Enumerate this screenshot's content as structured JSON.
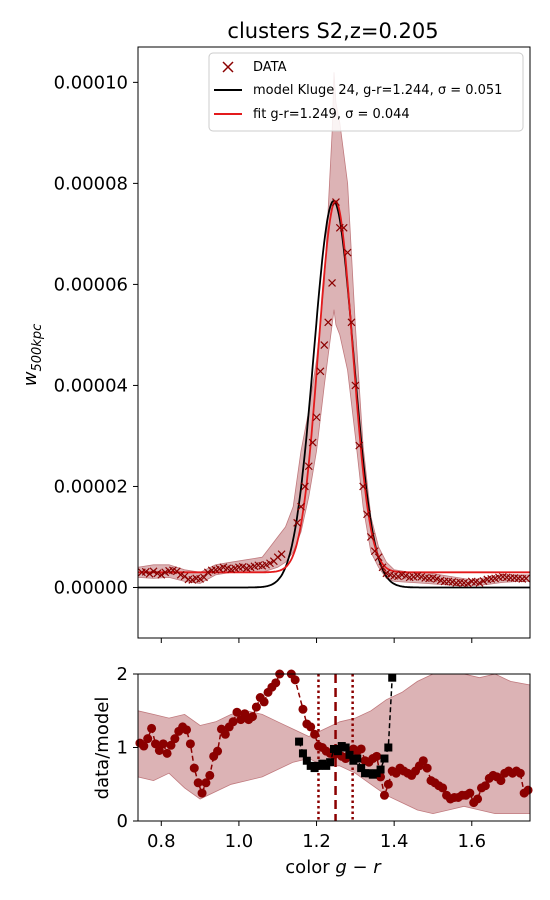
{
  "chart_data": [
    {
      "type": "line",
      "title": "clusters S2,z=0.205",
      "ylabel": "w_500kpc",
      "ylabel_main": "w",
      "ylabel_sub": "500kpc",
      "xlim": [
        0.74,
        1.75
      ],
      "ylim": [
        -1e-05,
        0.000107
      ],
      "yticks": [
        0.0,
        2e-05,
        4e-05,
        6e-05,
        8e-05,
        0.0001
      ],
      "ytick_labels": [
        "0.00000",
        "0.00002",
        "0.00004",
        "0.00006",
        "0.00008",
        "0.00010"
      ],
      "legend_position": "top-right",
      "colors": {
        "data": "#8b0000",
        "model": "#000000",
        "fit": "#e31a1c",
        "band": "#d6a6a8",
        "band_edge": "#c07a7e"
      },
      "legend": [
        {
          "key": "data",
          "label": "DATA"
        },
        {
          "key": "model",
          "label": "model Kluge 24, g-r=1.244, σ = 0.051"
        },
        {
          "key": "fit",
          "label": "fit g-r=1.249, σ = 0.044"
        }
      ],
      "series": [
        {
          "name": "DATA",
          "marker": "x",
          "x": [
            0.75,
            0.76,
            0.77,
            0.78,
            0.79,
            0.8,
            0.81,
            0.82,
            0.83,
            0.84,
            0.85,
            0.86,
            0.87,
            0.88,
            0.89,
            0.9,
            0.91,
            0.92,
            0.93,
            0.94,
            0.95,
            0.96,
            0.97,
            0.98,
            0.99,
            1.0,
            1.01,
            1.02,
            1.03,
            1.04,
            1.05,
            1.06,
            1.07,
            1.08,
            1.09,
            1.1,
            1.11,
            1.15,
            1.16,
            1.17,
            1.18,
            1.19,
            1.2,
            1.21,
            1.22,
            1.23,
            1.24,
            1.25,
            1.26,
            1.27,
            1.28,
            1.29,
            1.3,
            1.31,
            1.32,
            1.33,
            1.34,
            1.35,
            1.36,
            1.37,
            1.38,
            1.39,
            1.4,
            1.41,
            1.42,
            1.43,
            1.44,
            1.45,
            1.46,
            1.47,
            1.48,
            1.49,
            1.5,
            1.51,
            1.52,
            1.53,
            1.54,
            1.55,
            1.56,
            1.57,
            1.58,
            1.59,
            1.6,
            1.61,
            1.62,
            1.63,
            1.64,
            1.65,
            1.66,
            1.67,
            1.68,
            1.69,
            1.7,
            1.71,
            1.72,
            1.73,
            1.74
          ],
          "y": [
            3e-06,
            3.1e-06,
            2.7e-06,
            3.2e-06,
            2.8e-06,
            2.5e-06,
            3e-06,
            3.3e-06,
            3.4e-06,
            3.2e-06,
            2.5e-06,
            2.2e-06,
            1.6e-06,
            1.5e-06,
            1.8e-06,
            1.7e-06,
            2e-06,
            3e-06,
            3.4e-06,
            3.5e-06,
            3.7e-06,
            4e-06,
            3.8e-06,
            3.6e-06,
            3.8e-06,
            4e-06,
            4.1e-06,
            3.8e-06,
            4e-06,
            4.2e-06,
            4.4e-06,
            4.3e-06,
            4.5e-06,
            4.8e-06,
            5.2e-06,
            6e-06,
            6.6e-06,
            1.28e-05,
            1.6e-05,
            2e-05,
            2.4e-05,
            2.87e-05,
            3.37e-05,
            4.28e-05,
            4.8e-05,
            5.25e-05,
            6.03e-05,
            7.63e-05,
            7.12e-05,
            7.12e-05,
            6.63e-05,
            5.25e-05,
            4e-05,
            2.81e-05,
            2e-05,
            1.45e-05,
            1e-05,
            7.2e-06,
            6e-06,
            4e-06,
            2.8e-06,
            2.5e-06,
            2.3e-06,
            2.2e-06,
            2.5e-06,
            2.3e-06,
            2e-06,
            2.1e-06,
            2.3e-06,
            2.1e-06,
            1.9e-06,
            1.8e-06,
            1.9e-06,
            1.7e-06,
            1.4e-06,
            1.2e-06,
            1.2e-06,
            1.1e-06,
            9e-07,
            1e-06,
            9e-07,
            8e-07,
            1.2e-06,
            1.1e-06,
            9e-07,
            1.3e-06,
            1.6e-06,
            1.7e-06,
            1.8e-06,
            2e-06,
            2.1e-06,
            2e-06,
            1.9e-06,
            1.9e-06,
            1.8e-06,
            1.7e-06,
            1.8e-06
          ]
        },
        {
          "name": "model Kluge 24, g-r=1.244, σ = 0.051",
          "type": "gaussian",
          "center": 1.244,
          "sigma": 0.051,
          "amplitude": 7.65e-05,
          "baseline": 0.0
        },
        {
          "name": "fit g-r=1.249, σ = 0.044",
          "type": "gaussian",
          "center": 1.249,
          "sigma": 0.044,
          "amplitude": 7.35e-05,
          "baseline": 3e-06
        }
      ],
      "band": {
        "x": [
          0.74,
          0.78,
          0.82,
          0.86,
          0.9,
          0.94,
          0.98,
          1.02,
          1.06,
          1.08,
          1.1,
          1.12,
          1.14,
          1.16,
          1.18,
          1.2,
          1.22,
          1.24,
          1.245,
          1.25,
          1.26,
          1.28,
          1.3,
          1.32,
          1.34,
          1.36,
          1.38,
          1.4,
          1.44,
          1.48,
          1.52,
          1.56,
          1.6,
          1.64,
          1.68,
          1.72,
          1.75
        ],
        "upper": [
          4e-06,
          4.5e-06,
          4.5e-06,
          3.5e-06,
          3e-06,
          4.5e-06,
          5e-06,
          5.5e-06,
          6e-06,
          8e-06,
          1e-05,
          1.2e-05,
          1.6e-05,
          2.7e-05,
          3.5e-05,
          4.5e-05,
          6e-05,
          9e-05,
          0.000102,
          9.6e-05,
          9.2e-05,
          8e-05,
          5.2e-05,
          2.8e-05,
          1.4e-05,
          8e-06,
          5e-06,
          3.5e-06,
          3e-06,
          3e-06,
          2.5e-06,
          2e-06,
          1.5e-06,
          2e-06,
          2.5e-06,
          2.5e-06,
          2.5e-06
        ],
        "lower": [
          2e-06,
          1.8e-06,
          2e-06,
          1.2e-06,
          8e-07,
          2.5e-06,
          3e-06,
          3e-06,
          3e-06,
          3.5e-06,
          4e-06,
          5e-06,
          7e-06,
          1.1e-05,
          1.8e-05,
          2.7e-05,
          4e-05,
          5.2e-05,
          5.5e-05,
          5.2e-05,
          5e-05,
          4.3e-05,
          3e-05,
          1.6e-05,
          7e-06,
          4e-06,
          1.8e-06,
          1.2e-06,
          1e-06,
          8e-07,
          6e-07,
          4e-07,
          4e-07,
          6e-07,
          1e-06,
          1.2e-06,
          1.2e-06
        ]
      }
    },
    {
      "type": "line",
      "xlabel": "color g − r",
      "xlabel_prefix": "color",
      "xlabel_math": "g − r",
      "ylabel": "data/model",
      "xlim": [
        0.74,
        1.75
      ],
      "ylim": [
        0,
        2
      ],
      "xticks": [
        0.8,
        1.0,
        1.2,
        1.4,
        1.6
      ],
      "xtick_labels": [
        "0.8",
        "1.0",
        "1.2",
        "1.4",
        "1.6"
      ],
      "yticks": [
        0,
        1,
        2
      ],
      "ytick_labels": [
        "0",
        "1",
        "2"
      ],
      "vertical_lines": [
        {
          "x": 1.249,
          "style": "dashed",
          "color": "#8b0000"
        },
        {
          "x": 1.205,
          "style": "dotted",
          "color": "#8b0000"
        },
        {
          "x": 1.293,
          "style": "dotted",
          "color": "#8b0000"
        }
      ],
      "series": [
        {
          "name": "ratio-to-model",
          "marker": "o",
          "color": "#8b0000",
          "x": [
            0.745,
            0.755,
            0.765,
            0.775,
            0.785,
            0.795,
            0.805,
            0.815,
            0.825,
            0.835,
            0.845,
            0.855,
            0.865,
            0.875,
            0.885,
            0.895,
            0.905,
            0.915,
            0.925,
            0.935,
            0.945,
            0.955,
            0.965,
            0.975,
            0.985,
            0.995,
            1.005,
            1.015,
            1.025,
            1.035,
            1.045,
            1.055,
            1.065,
            1.075,
            1.085,
            1.095,
            1.105,
            1.135,
            1.145,
            1.165,
            1.175,
            1.185,
            1.195,
            1.205,
            1.215,
            1.225,
            1.235,
            1.245,
            1.255,
            1.265,
            1.275,
            1.285,
            1.295,
            1.305,
            1.315,
            1.325,
            1.335,
            1.345,
            1.355,
            1.365,
            1.375,
            1.385,
            1.395,
            1.405,
            1.415,
            1.425,
            1.435,
            1.445,
            1.455,
            1.465,
            1.475,
            1.485,
            1.495,
            1.505,
            1.515,
            1.525,
            1.535,
            1.545,
            1.555,
            1.565,
            1.575,
            1.585,
            1.595,
            1.605,
            1.615,
            1.625,
            1.635,
            1.645,
            1.655,
            1.665,
            1.675,
            1.685,
            1.695,
            1.705,
            1.715,
            1.725,
            1.735,
            1.745
          ],
          "y": [
            1.06,
            1.02,
            1.12,
            1.26,
            1.05,
            0.96,
            1.05,
            0.92,
            1.03,
            1.12,
            1.22,
            1.28,
            1.24,
            1.05,
            0.72,
            0.52,
            0.38,
            0.52,
            0.62,
            0.88,
            0.95,
            1.25,
            1.18,
            1.28,
            1.35,
            1.48,
            1.38,
            1.46,
            1.38,
            1.42,
            1.55,
            1.68,
            1.62,
            1.75,
            1.82,
            1.88,
            2.0,
            2.0,
            1.92,
            1.52,
            1.32,
            1.28,
            1.18,
            1.02,
            1.0,
            0.95,
            0.92,
            0.9,
            0.95,
            0.88,
            0.85,
            0.92,
            0.98,
            0.95,
            0.98,
            0.82,
            0.8,
            0.85,
            0.88,
            0.6,
            0.35,
            0.5,
            0.68,
            0.65,
            0.72,
            0.68,
            0.65,
            0.62,
            0.68,
            0.75,
            0.82,
            0.72,
            0.55,
            0.52,
            0.48,
            0.45,
            0.35,
            0.3,
            0.32,
            0.32,
            0.35,
            0.35,
            0.38,
            0.25,
            0.3,
            0.45,
            0.48,
            0.58,
            0.62,
            0.6,
            0.55,
            0.65,
            0.68,
            0.65,
            0.68,
            0.65,
            0.38,
            0.42
          ]
        },
        {
          "name": "fit-to-model",
          "marker": "s",
          "color": "#000000",
          "x": [
            1.155,
            1.165,
            1.175,
            1.185,
            1.195,
            1.205,
            1.215,
            1.225,
            1.235,
            1.245,
            1.255,
            1.265,
            1.275,
            1.285,
            1.295,
            1.305,
            1.315,
            1.325,
            1.335,
            1.345,
            1.355,
            1.365,
            1.375,
            1.385,
            1.395
          ],
          "y": [
            1.08,
            0.92,
            0.82,
            0.75,
            0.72,
            0.75,
            0.78,
            0.75,
            0.8,
            0.98,
            0.95,
            1.02,
            1.0,
            0.9,
            0.82,
            0.85,
            0.72,
            0.65,
            0.65,
            0.63,
            0.65,
            0.7,
            0.85,
            1.0,
            1.95
          ]
        }
      ],
      "band": {
        "x": [
          0.74,
          0.78,
          0.82,
          0.86,
          0.9,
          0.94,
          0.98,
          1.02,
          1.06,
          1.1,
          1.14,
          1.18,
          1.22,
          1.26,
          1.3,
          1.34,
          1.38,
          1.42,
          1.46,
          1.5,
          1.54,
          1.58,
          1.62,
          1.66,
          1.7,
          1.75
        ],
        "upper": [
          1.5,
          1.45,
          1.4,
          1.45,
          1.3,
          1.35,
          1.45,
          1.5,
          1.45,
          1.35,
          1.25,
          1.15,
          1.25,
          1.35,
          1.4,
          1.5,
          1.65,
          1.75,
          1.9,
          2.0,
          2.0,
          2.0,
          1.95,
          2.0,
          1.9,
          1.85
        ],
        "lower": [
          0.6,
          0.55,
          0.65,
          0.45,
          0.3,
          0.4,
          0.5,
          0.55,
          0.6,
          0.7,
          0.8,
          0.85,
          0.75,
          0.75,
          0.65,
          0.5,
          0.35,
          0.25,
          0.15,
          0.1,
          0.15,
          0.2,
          0.15,
          0.1,
          0.1,
          0.1
        ]
      }
    }
  ]
}
